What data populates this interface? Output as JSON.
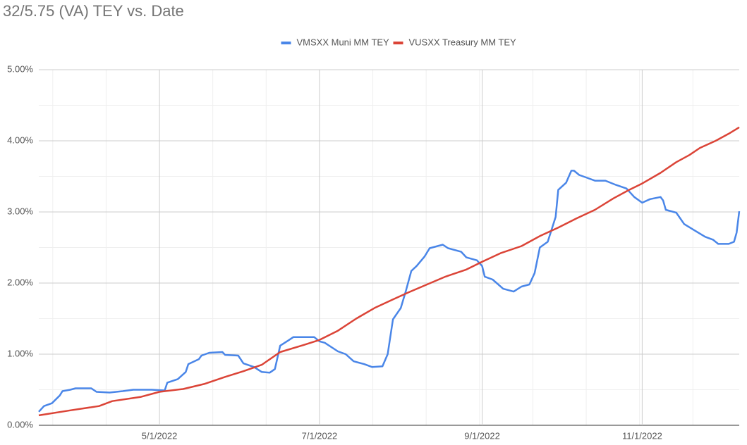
{
  "chart_data": {
    "type": "line",
    "title": "32/5.75 (VA) TEY vs. Date",
    "xlim": [
      "2022-03-16",
      "2022-12-08"
    ],
    "xticks": [
      {
        "value": "2022-05-01",
        "label": "5/1/2022"
      },
      {
        "value": "2022-07-01",
        "label": "7/1/2022"
      },
      {
        "value": "2022-09-01",
        "label": "9/1/2022"
      },
      {
        "value": "2022-11-01",
        "label": "11/1/2022"
      }
    ],
    "ylim": [
      0,
      5
    ],
    "yticks": [
      {
        "value": 0,
        "label": "0.00%"
      },
      {
        "value": 1,
        "label": "1.00%"
      },
      {
        "value": 2,
        "label": "2.00%"
      },
      {
        "value": 3,
        "label": "3.00%"
      },
      {
        "value": 4,
        "label": "4.00%"
      },
      {
        "value": 5,
        "label": "5.00%"
      }
    ],
    "grid": true,
    "minor_gridlines": {
      "x": 2,
      "y": 1
    },
    "legend": "top",
    "series": [
      {
        "name": "VMSXX Muni MM TEY",
        "color": "#4a86e8",
        "x": [
          "2022-03-16",
          "2022-03-18",
          "2022-03-21",
          "2022-03-24",
          "2022-03-25",
          "2022-03-28",
          "2022-03-30",
          "2022-04-05",
          "2022-04-07",
          "2022-04-12",
          "2022-04-17",
          "2022-04-21",
          "2022-04-28",
          "2022-05-03",
          "2022-05-04",
          "2022-05-08",
          "2022-05-11",
          "2022-05-12",
          "2022-05-16",
          "2022-05-17",
          "2022-05-20",
          "2022-05-25",
          "2022-05-26",
          "2022-05-31",
          "2022-06-02",
          "2022-06-06",
          "2022-06-09",
          "2022-06-12",
          "2022-06-14",
          "2022-06-16",
          "2022-06-19",
          "2022-06-21",
          "2022-06-29",
          "2022-07-01",
          "2022-07-03",
          "2022-07-08",
          "2022-07-11",
          "2022-07-14",
          "2022-07-18",
          "2022-07-21",
          "2022-07-25",
          "2022-07-27",
          "2022-07-29",
          "2022-08-01",
          "2022-08-03",
          "2022-08-05",
          "2022-08-07",
          "2022-08-10",
          "2022-08-12",
          "2022-08-16",
          "2022-08-17",
          "2022-08-19",
          "2022-08-24",
          "2022-08-26",
          "2022-08-30",
          "2022-09-01",
          "2022-09-02",
          "2022-09-05",
          "2022-09-09",
          "2022-09-13",
          "2022-09-16",
          "2022-09-19",
          "2022-09-21",
          "2022-09-23",
          "2022-09-26",
          "2022-09-29",
          "2022-09-30",
          "2022-10-03",
          "2022-10-05",
          "2022-10-06",
          "2022-10-08",
          "2022-10-11",
          "2022-10-14",
          "2022-10-18",
          "2022-10-22",
          "2022-10-26",
          "2022-10-29",
          "2022-11-01",
          "2022-11-04",
          "2022-11-08",
          "2022-11-09",
          "2022-11-10",
          "2022-11-14",
          "2022-11-17",
          "2022-11-21",
          "2022-11-25",
          "2022-11-28",
          "2022-11-30",
          "2022-12-04",
          "2022-12-06",
          "2022-12-07",
          "2022-12-08"
        ],
        "values": [
          0.19,
          0.27,
          0.31,
          0.42,
          0.48,
          0.5,
          0.52,
          0.52,
          0.47,
          0.46,
          0.48,
          0.5,
          0.5,
          0.49,
          0.6,
          0.65,
          0.75,
          0.86,
          0.93,
          0.98,
          1.02,
          1.03,
          0.99,
          0.98,
          0.87,
          0.82,
          0.75,
          0.74,
          0.79,
          1.12,
          1.19,
          1.24,
          1.24,
          1.18,
          1.16,
          1.04,
          1.0,
          0.9,
          0.86,
          0.82,
          0.83,
          1.0,
          1.49,
          1.65,
          1.9,
          2.17,
          2.24,
          2.37,
          2.49,
          2.53,
          2.54,
          2.49,
          2.44,
          2.36,
          2.32,
          2.24,
          2.09,
          2.05,
          1.92,
          1.88,
          1.95,
          1.98,
          2.14,
          2.5,
          2.58,
          2.93,
          3.31,
          3.41,
          3.58,
          3.58,
          3.52,
          3.48,
          3.44,
          3.44,
          3.38,
          3.33,
          3.21,
          3.13,
          3.18,
          3.21,
          3.16,
          3.03,
          2.99,
          2.83,
          2.74,
          2.65,
          2.61,
          2.55,
          2.55,
          2.58,
          2.71,
          3.01
        ]
      },
      {
        "name": "VUSXX Treasury MM TEY",
        "color": "#db4437",
        "x": [
          "2022-03-16",
          "2022-03-28",
          "2022-04-08",
          "2022-04-13",
          "2022-04-24",
          "2022-05-01",
          "2022-05-10",
          "2022-05-18",
          "2022-05-26",
          "2022-06-02",
          "2022-06-09",
          "2022-06-16",
          "2022-06-25",
          "2022-07-01",
          "2022-07-08",
          "2022-07-15",
          "2022-07-22",
          "2022-07-29",
          "2022-08-04",
          "2022-08-11",
          "2022-08-18",
          "2022-08-26",
          "2022-09-01",
          "2022-09-08",
          "2022-09-16",
          "2022-09-23",
          "2022-09-30",
          "2022-10-07",
          "2022-10-14",
          "2022-10-21",
          "2022-10-27",
          "2022-11-01",
          "2022-11-08",
          "2022-11-14",
          "2022-11-19",
          "2022-11-23",
          "2022-11-29",
          "2022-12-04",
          "2022-12-08"
        ],
        "values": [
          0.14,
          0.21,
          0.27,
          0.34,
          0.4,
          0.47,
          0.51,
          0.58,
          0.68,
          0.76,
          0.85,
          1.03,
          1.13,
          1.2,
          1.33,
          1.5,
          1.65,
          1.77,
          1.87,
          1.98,
          2.09,
          2.19,
          2.3,
          2.42,
          2.52,
          2.66,
          2.78,
          2.91,
          3.03,
          3.19,
          3.31,
          3.4,
          3.55,
          3.7,
          3.8,
          3.9,
          4.0,
          4.1,
          4.19
        ]
      }
    ]
  }
}
